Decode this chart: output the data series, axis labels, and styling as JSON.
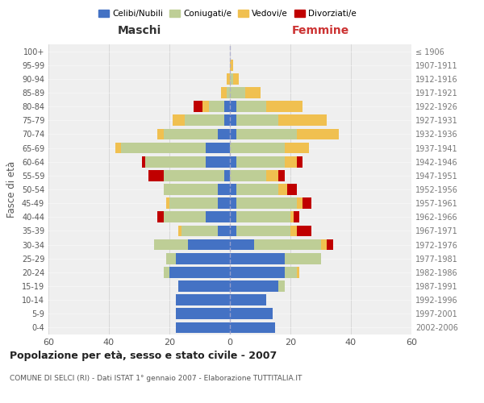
{
  "age_groups": [
    "0-4",
    "5-9",
    "10-14",
    "15-19",
    "20-24",
    "25-29",
    "30-34",
    "35-39",
    "40-44",
    "45-49",
    "50-54",
    "55-59",
    "60-64",
    "65-69",
    "70-74",
    "75-79",
    "80-84",
    "85-89",
    "90-94",
    "95-99",
    "100+"
  ],
  "birth_years": [
    "2002-2006",
    "1997-2001",
    "1992-1996",
    "1987-1991",
    "1982-1986",
    "1977-1981",
    "1972-1976",
    "1967-1971",
    "1962-1966",
    "1957-1961",
    "1952-1956",
    "1947-1951",
    "1942-1946",
    "1937-1941",
    "1932-1936",
    "1927-1931",
    "1922-1926",
    "1917-1921",
    "1912-1916",
    "1907-1911",
    "≤ 1906"
  ],
  "colors": {
    "celibe": "#4472C4",
    "coniugato": "#BECE96",
    "vedovo": "#F0C050",
    "divorziato": "#C00000"
  },
  "maschi": {
    "celibe": [
      18,
      18,
      18,
      17,
      20,
      18,
      14,
      4,
      8,
      4,
      4,
      2,
      8,
      8,
      4,
      2,
      2,
      0,
      0,
      0,
      0
    ],
    "coniugato": [
      0,
      0,
      0,
      0,
      2,
      3,
      11,
      12,
      14,
      16,
      18,
      20,
      20,
      28,
      18,
      13,
      5,
      1,
      0,
      0,
      0
    ],
    "vedovo": [
      0,
      0,
      0,
      0,
      0,
      0,
      0,
      1,
      0,
      1,
      0,
      0,
      0,
      2,
      2,
      4,
      2,
      2,
      1,
      0,
      0
    ],
    "divorziato": [
      0,
      0,
      0,
      0,
      0,
      0,
      0,
      0,
      2,
      0,
      0,
      5,
      1,
      0,
      0,
      0,
      3,
      0,
      0,
      0,
      0
    ]
  },
  "femmine": {
    "nubile": [
      15,
      14,
      12,
      16,
      18,
      18,
      8,
      2,
      2,
      2,
      2,
      0,
      2,
      0,
      2,
      2,
      2,
      0,
      0,
      0,
      0
    ],
    "coniugata": [
      0,
      0,
      0,
      2,
      4,
      12,
      22,
      18,
      18,
      20,
      14,
      12,
      16,
      18,
      20,
      14,
      10,
      5,
      1,
      0,
      0
    ],
    "vedova": [
      0,
      0,
      0,
      0,
      1,
      0,
      2,
      2,
      1,
      2,
      3,
      4,
      4,
      8,
      14,
      16,
      12,
      5,
      2,
      1,
      0
    ],
    "divorziata": [
      0,
      0,
      0,
      0,
      0,
      0,
      2,
      5,
      2,
      3,
      3,
      2,
      2,
      0,
      0,
      0,
      0,
      0,
      0,
      0,
      0
    ]
  },
  "xlim": 60,
  "title": "Popolazione per età, sesso e stato civile - 2007",
  "subtitle": "COMUNE DI SELCI (RI) - Dati ISTAT 1° gennaio 2007 - Elaborazione TUTTITALIA.IT",
  "xlabel_left": "Maschi",
  "xlabel_right": "Femmine",
  "ylabel_left": "Fasce di età",
  "legend_labels": [
    "Celibi/Nubili",
    "Coniugati/e",
    "Vedovi/e",
    "Divorziati/e"
  ],
  "bg_color": "#EFEFEF",
  "grid_color": "#CCCCCC"
}
